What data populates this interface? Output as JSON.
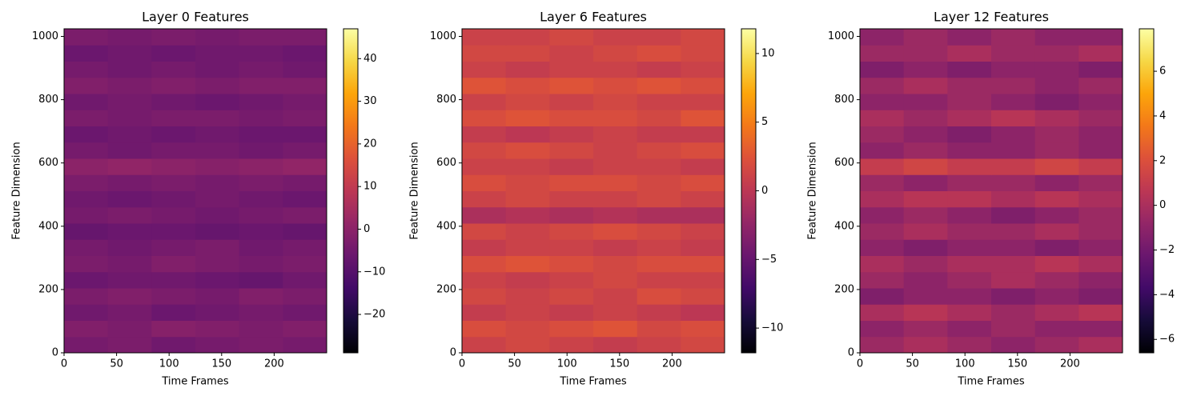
{
  "chart_data": [
    {
      "type": "heatmap",
      "title": "Layer 0 Features",
      "xlabel": "Time Frames",
      "ylabel": "Feature Dimension",
      "xlim": [
        0,
        250
      ],
      "ylim": [
        0,
        1024
      ],
      "xticks": [
        0,
        50,
        100,
        150,
        200
      ],
      "yticks": [
        0,
        200,
        400,
        600,
        800,
        1000
      ],
      "colormap": "inferno",
      "clim": [
        -29,
        47
      ],
      "cticks": [
        {
          "value": -20,
          "label": "−20"
        },
        {
          "value": -10,
          "label": "−10"
        },
        0,
        10,
        20,
        30,
        40
      ],
      "z": [
        [
          -4,
          -3,
          -5,
          -4,
          -3,
          -4
        ],
        [
          -2,
          -3,
          -1,
          -2,
          -3,
          -2
        ],
        [
          -5,
          -4,
          -6,
          -5,
          -4,
          -5
        ],
        [
          -3,
          -2,
          -3,
          -4,
          -2,
          -3
        ],
        [
          -6,
          -5,
          -5,
          -6,
          -7,
          -5
        ],
        [
          -3,
          -4,
          -2,
          -3,
          -4,
          -3
        ],
        [
          -4,
          -5,
          -4,
          -3,
          -5,
          -4
        ],
        [
          -7,
          -6,
          -6,
          -7,
          -6,
          -7
        ],
        [
          -4,
          -3,
          -4,
          -5,
          -4,
          -3
        ],
        [
          -5,
          -6,
          -5,
          -4,
          -5,
          -6
        ],
        [
          -3,
          -4,
          -3,
          -4,
          -3,
          -4
        ],
        [
          0,
          1,
          0,
          -1,
          0,
          1
        ],
        [
          -4,
          -5,
          -4,
          -4,
          -5,
          -4
        ],
        [
          -6,
          -5,
          -6,
          -5,
          -6,
          -6
        ],
        [
          -3,
          -4,
          -3,
          -3,
          -4,
          -3
        ],
        [
          -5,
          -4,
          -5,
          -6,
          -5,
          -4
        ],
        [
          -2,
          -3,
          -2,
          -3,
          -2,
          -2
        ],
        [
          -4,
          -5,
          -4,
          -5,
          -4,
          -5
        ],
        [
          -6,
          -5,
          -6,
          -5,
          -5,
          -6
        ],
        [
          -3,
          -4,
          -3,
          -4,
          -3,
          -3
        ]
      ]
    },
    {
      "type": "heatmap",
      "title": "Layer 6 Features",
      "xlabel": "Time Frames",
      "ylabel": "Feature Dimension",
      "xlim": [
        0,
        250
      ],
      "ylim": [
        0,
        1024
      ],
      "xticks": [
        0,
        50,
        100,
        150,
        200
      ],
      "yticks": [
        0,
        200,
        400,
        600,
        800,
        1000
      ],
      "colormap": "inferno",
      "clim": [
        -11.8,
        11.8
      ],
      "cticks": [
        {
          "value": -10,
          "label": "−10"
        },
        {
          "value": -5,
          "label": "−5"
        },
        0,
        5,
        10
      ],
      "z": [
        [
          1,
          1.5,
          1,
          0.5,
          1,
          1.5
        ],
        [
          2,
          1.5,
          2,
          2.5,
          1.5,
          2
        ],
        [
          0.5,
          1,
          0.5,
          1,
          0.5,
          0
        ],
        [
          1.5,
          1,
          1.5,
          1,
          2,
          1.5
        ],
        [
          1,
          0.5,
          1,
          1.5,
          1,
          1
        ],
        [
          2,
          2.5,
          2,
          1.5,
          2,
          2
        ],
        [
          0.5,
          1,
          1,
          0.5,
          1,
          0.5
        ],
        [
          1.5,
          1,
          1.5,
          2,
          1.5,
          1
        ],
        [
          -1,
          -0.5,
          -1,
          -0.5,
          -1,
          -1
        ],
        [
          1,
          1.5,
          1,
          1,
          1.5,
          1
        ],
        [
          2,
          1.5,
          2,
          2,
          1.5,
          2
        ],
        [
          1,
          1,
          0.5,
          1,
          1,
          0.5
        ],
        [
          1.5,
          2,
          1.5,
          1,
          1.5,
          2
        ],
        [
          0.5,
          0,
          0.5,
          1,
          0.5,
          0.5
        ],
        [
          2,
          2.5,
          2,
          2,
          1.5,
          2.5
        ],
        [
          1,
          1.5,
          1,
          1.5,
          1,
          1
        ],
        [
          2.5,
          2,
          2.5,
          2,
          2.5,
          2
        ],
        [
          1,
          0.5,
          1,
          1,
          0.5,
          1
        ],
        [
          1.5,
          1.5,
          1,
          1.5,
          2,
          1.5
        ],
        [
          1,
          1,
          1.5,
          1,
          1,
          1.5
        ]
      ]
    },
    {
      "type": "heatmap",
      "title": "Layer 12 Features",
      "xlabel": "Time Frames",
      "ylabel": "Feature Dimension",
      "xlim": [
        0,
        250
      ],
      "ylim": [
        0,
        1024
      ],
      "xticks": [
        0,
        50,
        100,
        150,
        200
      ],
      "yticks": [
        0,
        200,
        400,
        600,
        800,
        1000
      ],
      "colormap": "inferno",
      "clim": [
        -6.6,
        7.9
      ],
      "cticks": [
        {
          "value": -6,
          "label": "−6"
        },
        {
          "value": -4,
          "label": "−4"
        },
        {
          "value": -2,
          "label": "−2"
        },
        0,
        2,
        4,
        6
      ],
      "z": [
        [
          -0.5,
          0,
          -0.5,
          -1,
          -0.5,
          0
        ],
        [
          -1,
          -0.5,
          -1,
          -0.5,
          -1,
          -1
        ],
        [
          0,
          0.5,
          0,
          -0.5,
          0,
          0.5
        ],
        [
          -1.5,
          -1,
          -1,
          -1.5,
          -1,
          -1.5
        ],
        [
          -0.5,
          -1,
          -0.5,
          0,
          -0.5,
          -1
        ],
        [
          0,
          -0.5,
          0,
          0,
          0.5,
          0
        ],
        [
          -1,
          -1.5,
          -1,
          -1,
          -1.5,
          -1
        ],
        [
          -0.5,
          0,
          -0.5,
          -0.5,
          0,
          -0.5
        ],
        [
          -1,
          -0.5,
          -1,
          -1.5,
          -1,
          -0.5
        ],
        [
          0,
          0.5,
          0.5,
          0,
          0.5,
          0
        ],
        [
          -0.5,
          -1,
          -0.5,
          -0.5,
          -1,
          -0.5
        ],
        [
          1,
          1.5,
          1,
          1,
          1.5,
          1
        ],
        [
          -1,
          -0.5,
          -1,
          -1,
          -0.5,
          -1
        ],
        [
          -0.5,
          -1,
          -1.5,
          -1,
          -0.5,
          -1
        ],
        [
          0,
          -0.5,
          0,
          0.5,
          0,
          -0.5
        ],
        [
          -1,
          -1,
          -0.5,
          -1,
          -1.5,
          -1
        ],
        [
          -0.5,
          0,
          -0.5,
          -0.5,
          -1,
          -0.5
        ],
        [
          -1.5,
          -1,
          -1.5,
          -1,
          -1,
          -1.5
        ],
        [
          -0.5,
          -0.5,
          0,
          -0.5,
          -0.5,
          0
        ],
        [
          -1,
          -0.5,
          -1,
          -0.5,
          -1,
          -1
        ]
      ]
    }
  ]
}
